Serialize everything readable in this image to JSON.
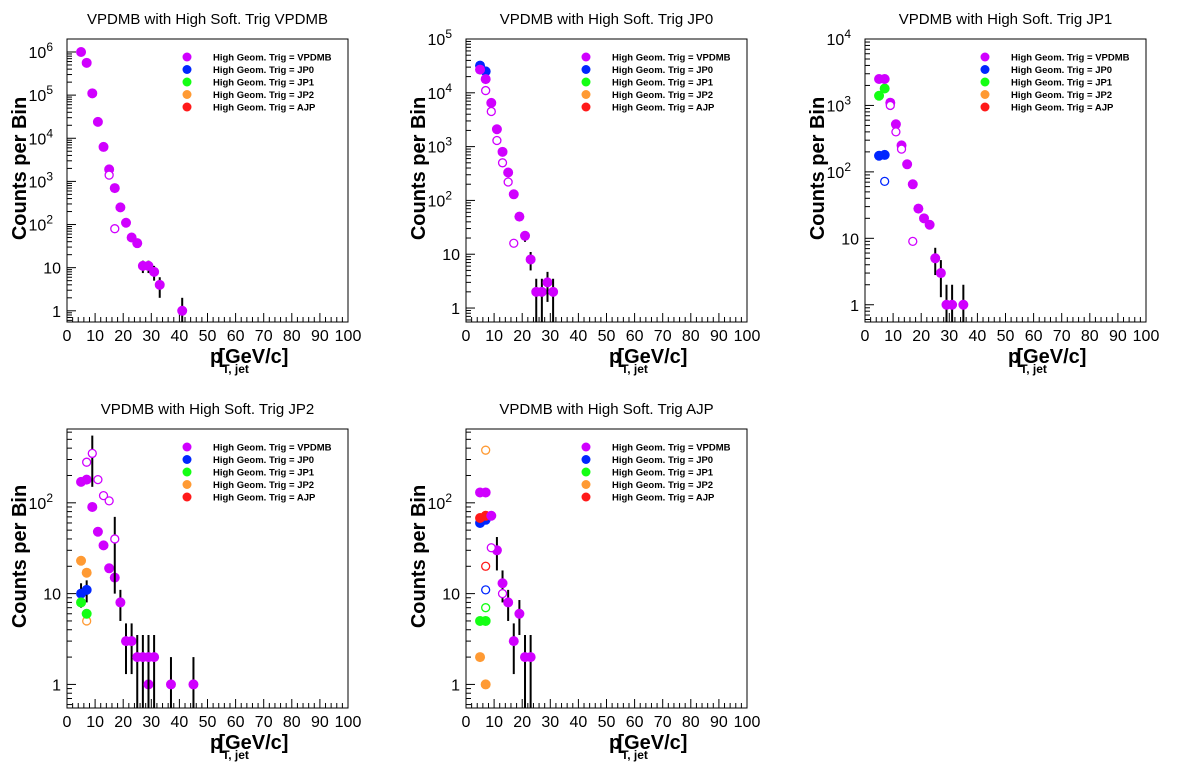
{
  "colors": {
    "VPDMB": "#d000ff",
    "JP0": "#0026ff",
    "JP1": "#14ff14",
    "JP2": "#ff9a33",
    "AJP": "#ff1a1a",
    "errorbar": "#000000",
    "frame": "#000000"
  },
  "legend_labels": [
    "High Geom. Trig = VPDMB",
    "High Geom. Trig = JP0",
    "High Geom. Trig = JP1",
    "High Geom. Trig = JP2",
    "High Geom. Trig = AJP"
  ],
  "chart_data": [
    {
      "type": "scatter",
      "title": "VPDMB with High Soft. Trig VPDMB",
      "xlabel_main": "p",
      "xlabel_sub": "T, jet",
      "xlabel_units": "[GeV/c]",
      "ylabel": "Counts per Bin",
      "xlim": [
        0,
        100
      ],
      "ylim": [
        0.55,
        2000000
      ],
      "yscale": "log",
      "xticks": [
        0,
        10,
        20,
        30,
        40,
        50,
        60,
        70,
        80,
        90,
        100
      ],
      "yticks": [
        {
          "v": 1,
          "label": "1"
        },
        {
          "v": 10,
          "label": "10"
        },
        {
          "v": 100,
          "label": "10",
          "exp": "2"
        },
        {
          "v": 1000,
          "label": "10",
          "exp": "3"
        },
        {
          "v": 10000,
          "label": "10",
          "exp": "4"
        },
        {
          "v": 100000,
          "label": "10",
          "exp": "5"
        },
        {
          "v": 1000000,
          "label": "10",
          "exp": "6"
        }
      ],
      "series": [
        {
          "name": "High Geom. Trig = VPDMB",
          "color_key": "VPDMB",
          "filled": true,
          "points": [
            {
              "x": 5,
              "y": 1000000
            },
            {
              "x": 7,
              "y": 560000
            },
            {
              "x": 9,
              "y": 110000
            },
            {
              "x": 11,
              "y": 24000
            },
            {
              "x": 13,
              "y": 6300
            },
            {
              "x": 15,
              "y": 1900
            },
            {
              "x": 17,
              "y": 700
            },
            {
              "x": 19,
              "y": 250
            },
            {
              "x": 21,
              "y": 110
            },
            {
              "x": 23,
              "y": 50
            },
            {
              "x": 25,
              "y": 37
            },
            {
              "x": 27,
              "y": 11,
              "yerr": 3.5
            },
            {
              "x": 29,
              "y": 11,
              "yerr": 3.5
            },
            {
              "x": 31,
              "y": 8,
              "yerr": 3
            },
            {
              "x": 33,
              "y": 4,
              "yerr": 2
            },
            {
              "x": 41,
              "y": 1,
              "yerr": 1
            }
          ]
        },
        {
          "name": "High Geom. Trig = VPDMB (open)",
          "color_key": "VPDMB",
          "filled": false,
          "points": [
            {
              "x": 15,
              "y": 1400
            },
            {
              "x": 17,
              "y": 80
            }
          ]
        }
      ]
    },
    {
      "type": "scatter",
      "title": "VPDMB with High Soft. Trig JP0",
      "xlabel_main": "p",
      "xlabel_sub": "T, jet",
      "xlabel_units": "[GeV/c]",
      "ylabel": "Counts per Bin",
      "xlim": [
        0,
        100
      ],
      "ylim": [
        0.55,
        100000
      ],
      "yscale": "log",
      "xticks": [
        0,
        10,
        20,
        30,
        40,
        50,
        60,
        70,
        80,
        90,
        100
      ],
      "yticks": [
        {
          "v": 1,
          "label": "1"
        },
        {
          "v": 10,
          "label": "10"
        },
        {
          "v": 100,
          "label": "10",
          "exp": "2"
        },
        {
          "v": 1000,
          "label": "10",
          "exp": "3"
        },
        {
          "v": 10000,
          "label": "10",
          "exp": "4"
        },
        {
          "v": 100000,
          "label": "10",
          "exp": "5"
        }
      ],
      "series": [
        {
          "name": "High Geom. Trig = JP0",
          "color_key": "JP0",
          "filled": true,
          "points": [
            {
              "x": 5,
              "y": 32000
            },
            {
              "x": 7,
              "y": 25000
            }
          ]
        },
        {
          "name": "High Geom. Trig = VPDMB",
          "color_key": "VPDMB",
          "filled": true,
          "points": [
            {
              "x": 5,
              "y": 27000
            },
            {
              "x": 7,
              "y": 18000
            },
            {
              "x": 9,
              "y": 6500
            },
            {
              "x": 11,
              "y": 2100
            },
            {
              "x": 13,
              "y": 800
            },
            {
              "x": 15,
              "y": 330
            },
            {
              "x": 17,
              "y": 130
            },
            {
              "x": 19,
              "y": 50
            },
            {
              "x": 21,
              "y": 22,
              "yerr": 5
            },
            {
              "x": 23,
              "y": 8,
              "yerr": 3
            },
            {
              "x": 25,
              "y": 2,
              "yerr": 1.5
            },
            {
              "x": 27,
              "y": 2,
              "yerr": 1.5
            },
            {
              "x": 29,
              "y": 3,
              "yerr": 1.7
            },
            {
              "x": 31,
              "y": 2,
              "yerr": 1.5
            }
          ]
        },
        {
          "name": "High Geom. Trig = VPDMB (open)",
          "color_key": "VPDMB",
          "filled": false,
          "points": [
            {
              "x": 7,
              "y": 11000
            },
            {
              "x": 9,
              "y": 4500
            },
            {
              "x": 11,
              "y": 1300
            },
            {
              "x": 13,
              "y": 500
            },
            {
              "x": 15,
              "y": 220
            },
            {
              "x": 17,
              "y": 16
            }
          ]
        }
      ]
    },
    {
      "type": "scatter",
      "title": "VPDMB with High Soft. Trig JP1",
      "xlabel_main": "p",
      "xlabel_sub": "T, jet",
      "xlabel_units": "[GeV/c]",
      "ylabel": "Counts per Bin",
      "xlim": [
        0,
        100
      ],
      "ylim": [
        0.55,
        10000
      ],
      "yscale": "log",
      "xticks": [
        0,
        10,
        20,
        30,
        40,
        50,
        60,
        70,
        80,
        90,
        100
      ],
      "yticks": [
        {
          "v": 1,
          "label": "1"
        },
        {
          "v": 10,
          "label": "10"
        },
        {
          "v": 100,
          "label": "10",
          "exp": "2"
        },
        {
          "v": 1000,
          "label": "10",
          "exp": "3"
        },
        {
          "v": 10000,
          "label": "10",
          "exp": "4"
        }
      ],
      "series": [
        {
          "name": "High Geom. Trig = JP0",
          "color_key": "JP0",
          "filled": true,
          "points": [
            {
              "x": 5,
              "y": 175
            },
            {
              "x": 7,
              "y": 180
            }
          ]
        },
        {
          "name": "High Geom. Trig = JP0 (open)",
          "color_key": "JP0",
          "filled": false,
          "points": [
            {
              "x": 7,
              "y": 72
            }
          ]
        },
        {
          "name": "High Geom. Trig = JP1",
          "color_key": "JP1",
          "filled": true,
          "points": [
            {
              "x": 5,
              "y": 1400
            },
            {
              "x": 7,
              "y": 1800
            }
          ]
        },
        {
          "name": "High Geom. Trig = VPDMB",
          "color_key": "VPDMB",
          "filled": true,
          "points": [
            {
              "x": 5,
              "y": 2500
            },
            {
              "x": 7,
              "y": 2500
            },
            {
              "x": 9,
              "y": 1100
            },
            {
              "x": 11,
              "y": 520
            },
            {
              "x": 13,
              "y": 250
            },
            {
              "x": 15,
              "y": 130
            },
            {
              "x": 17,
              "y": 65
            },
            {
              "x": 19,
              "y": 28
            },
            {
              "x": 21,
              "y": 20
            },
            {
              "x": 23,
              "y": 16
            },
            {
              "x": 25,
              "y": 5,
              "yerr": 2.2
            },
            {
              "x": 27,
              "y": 3,
              "yerr": 1.7
            },
            {
              "x": 29,
              "y": 1,
              "yerr": 1
            },
            {
              "x": 31,
              "y": 1,
              "yerr": 1
            },
            {
              "x": 35,
              "y": 1,
              "yerr": 1
            }
          ]
        },
        {
          "name": "High Geom. Trig = VPDMB (open)",
          "color_key": "VPDMB",
          "filled": false,
          "points": [
            {
              "x": 9,
              "y": 1000
            },
            {
              "x": 11,
              "y": 400
            },
            {
              "x": 13,
              "y": 220
            },
            {
              "x": 17,
              "y": 9
            }
          ]
        }
      ]
    },
    {
      "type": "scatter",
      "title": "VPDMB with High Soft. Trig JP2",
      "xlabel_main": "p",
      "xlabel_sub": "T, jet",
      "xlabel_units": "[GeV/c]",
      "ylabel": "Counts per Bin",
      "xlim": [
        0,
        100
      ],
      "ylim": [
        0.55,
        650
      ],
      "yscale": "log",
      "xticks": [
        0,
        10,
        20,
        30,
        40,
        50,
        60,
        70,
        80,
        90,
        100
      ],
      "yticks": [
        {
          "v": 1,
          "label": "1"
        },
        {
          "v": 10,
          "label": "10"
        },
        {
          "v": 100,
          "label": "10",
          "exp": "2"
        }
      ],
      "series": [
        {
          "name": "High Geom. Trig = JP2",
          "color_key": "JP2",
          "filled": true,
          "points": [
            {
              "x": 5,
              "y": 23
            },
            {
              "x": 7,
              "y": 17
            }
          ]
        },
        {
          "name": "High Geom. Trig = JP2 (open)",
          "color_key": "JP2",
          "filled": false,
          "points": [
            {
              "x": 7,
              "y": 5
            }
          ]
        },
        {
          "name": "High Geom. Trig = JP0",
          "color_key": "JP0",
          "filled": true,
          "points": [
            {
              "x": 5,
              "y": 10,
              "yerr": 3
            },
            {
              "x": 7,
              "y": 11,
              "yerr": 3
            }
          ]
        },
        {
          "name": "High Geom. Trig = JP1",
          "color_key": "JP1",
          "filled": true,
          "points": [
            {
              "x": 5,
              "y": 8
            },
            {
              "x": 7,
              "y": 6
            }
          ]
        },
        {
          "name": "High Geom. Trig = VPDMB",
          "color_key": "VPDMB",
          "filled": true,
          "points": [
            {
              "x": 5,
              "y": 170
            },
            {
              "x": 7,
              "y": 180
            },
            {
              "x": 9,
              "y": 90
            },
            {
              "x": 11,
              "y": 48
            },
            {
              "x": 13,
              "y": 34
            },
            {
              "x": 15,
              "y": 19
            },
            {
              "x": 17,
              "y": 15
            },
            {
              "x": 19,
              "y": 8,
              "yerr": 3
            },
            {
              "x": 21,
              "y": 3,
              "yerr": 1.7
            },
            {
              "x": 23,
              "y": 3,
              "yerr": 1.7
            },
            {
              "x": 25,
              "y": 2,
              "yerr": 1.5
            },
            {
              "x": 27,
              "y": 2,
              "yerr": 1.5
            },
            {
              "x": 29,
              "y": 1,
              "yerr": 1
            },
            {
              "x": 29,
              "y": 2,
              "yerr": 1.5
            },
            {
              "x": 31,
              "y": 2,
              "yerr": 1.5
            },
            {
              "x": 37,
              "y": 1,
              "yerr": 1
            },
            {
              "x": 45,
              "y": 1,
              "yerr": 1
            }
          ]
        },
        {
          "name": "High Geom. Trig = VPDMB (open)",
          "color_key": "VPDMB",
          "filled": false,
          "points": [
            {
              "x": 7,
              "y": 280
            },
            {
              "x": 9,
              "y": 350,
              "yerr": 200
            },
            {
              "x": 11,
              "y": 180
            },
            {
              "x": 13,
              "y": 120
            },
            {
              "x": 15,
              "y": 105
            },
            {
              "x": 17,
              "y": 40,
              "yerr": 30
            }
          ]
        }
      ]
    },
    {
      "type": "scatter",
      "title": "VPDMB with High Soft. Trig AJP",
      "xlabel_main": "p",
      "xlabel_sub": "T, jet",
      "xlabel_units": "[GeV/c]",
      "ylabel": "Counts per Bin",
      "xlim": [
        0,
        100
      ],
      "ylim": [
        0.55,
        650
      ],
      "yscale": "log",
      "xticks": [
        0,
        10,
        20,
        30,
        40,
        50,
        60,
        70,
        80,
        90,
        100
      ],
      "yticks": [
        {
          "v": 1,
          "label": "1"
        },
        {
          "v": 10,
          "label": "10"
        },
        {
          "v": 100,
          "label": "10",
          "exp": "2"
        }
      ],
      "series": [
        {
          "name": "High Geom. Trig = JP0",
          "color_key": "JP0",
          "filled": true,
          "points": [
            {
              "x": 5,
              "y": 60
            },
            {
              "x": 7,
              "y": 65
            }
          ]
        },
        {
          "name": "High Geom. Trig = JP0 (open)",
          "color_key": "JP0",
          "filled": false,
          "points": [
            {
              "x": 7,
              "y": 11
            }
          ]
        },
        {
          "name": "High Geom. Trig = AJP",
          "color_key": "AJP",
          "filled": true,
          "points": [
            {
              "x": 5,
              "y": 68
            },
            {
              "x": 7,
              "y": 72
            }
          ]
        },
        {
          "name": "High Geom. Trig = AJP (open)",
          "color_key": "AJP",
          "filled": false,
          "points": [
            {
              "x": 7,
              "y": 20
            }
          ]
        },
        {
          "name": "High Geom. Trig = JP2",
          "color_key": "JP2",
          "filled": true,
          "points": [
            {
              "x": 5,
              "y": 2
            },
            {
              "x": 7,
              "y": 1
            }
          ]
        },
        {
          "name": "High Geom. Trig = JP2 (open)",
          "color_key": "JP2",
          "filled": false,
          "points": [
            {
              "x": 7,
              "y": 380
            }
          ]
        },
        {
          "name": "High Geom. Trig = JP1",
          "color_key": "JP1",
          "filled": true,
          "points": [
            {
              "x": 5,
              "y": 5
            },
            {
              "x": 7,
              "y": 5
            }
          ]
        },
        {
          "name": "High Geom. Trig = JP1 (open)",
          "color_key": "JP1",
          "filled": false,
          "points": [
            {
              "x": 7,
              "y": 7
            }
          ]
        },
        {
          "name": "High Geom. Trig = VPDMB",
          "color_key": "VPDMB",
          "filled": true,
          "points": [
            {
              "x": 5,
              "y": 130
            },
            {
              "x": 7,
              "y": 130
            },
            {
              "x": 9,
              "y": 72
            },
            {
              "x": 11,
              "y": 30,
              "yerr": 12
            },
            {
              "x": 13,
              "y": 13,
              "yerr": 5
            },
            {
              "x": 15,
              "y": 8,
              "yerr": 3
            },
            {
              "x": 17,
              "y": 3,
              "yerr": 1.7
            },
            {
              "x": 19,
              "y": 6,
              "yerr": 2.5
            },
            {
              "x": 21,
              "y": 2,
              "yerr": 1.5
            },
            {
              "x": 23,
              "y": 2,
              "yerr": 1.5
            }
          ]
        },
        {
          "name": "High Geom. Trig = VPDMB (open)",
          "color_key": "VPDMB",
          "filled": false,
          "points": [
            {
              "x": 9,
              "y": 32
            },
            {
              "x": 13,
              "y": 10
            }
          ]
        }
      ]
    }
  ]
}
